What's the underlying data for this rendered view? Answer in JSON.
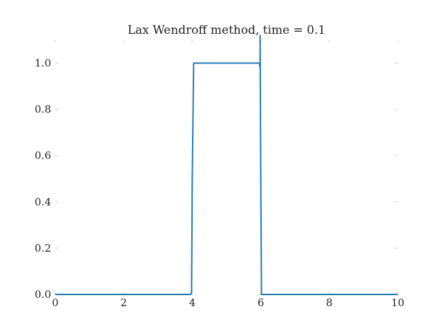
{
  "chart_data": {
    "type": "line",
    "title": "Lax Wendroff method, time = 0.1",
    "xlabel": "",
    "ylabel": "",
    "xlim": [
      0,
      10
    ],
    "ylim": [
      0,
      1.1
    ],
    "grid": false,
    "xticks": [
      0,
      2,
      4,
      6,
      8,
      10
    ],
    "xtick_labels": [
      "0",
      "2",
      "4",
      "6",
      "8",
      "10"
    ],
    "yticks": [
      0.0,
      0.2,
      0.4,
      0.6,
      0.8,
      1.0
    ],
    "ytick_labels": [
      "0.0",
      "0.2",
      "0.4",
      "0.6",
      "0.8",
      "1.0"
    ],
    "series": [
      {
        "color": "#1f77b4",
        "x": [
          0,
          3.96,
          3.98,
          4.0,
          4.04,
          5.96,
          5.98,
          5.98,
          6.0,
          6.02,
          10
        ],
        "y": [
          0,
          0,
          0.01,
          0.5,
          1.0,
          1.0,
          0.98,
          1.12,
          0.5,
          0,
          0
        ]
      }
    ]
  }
}
